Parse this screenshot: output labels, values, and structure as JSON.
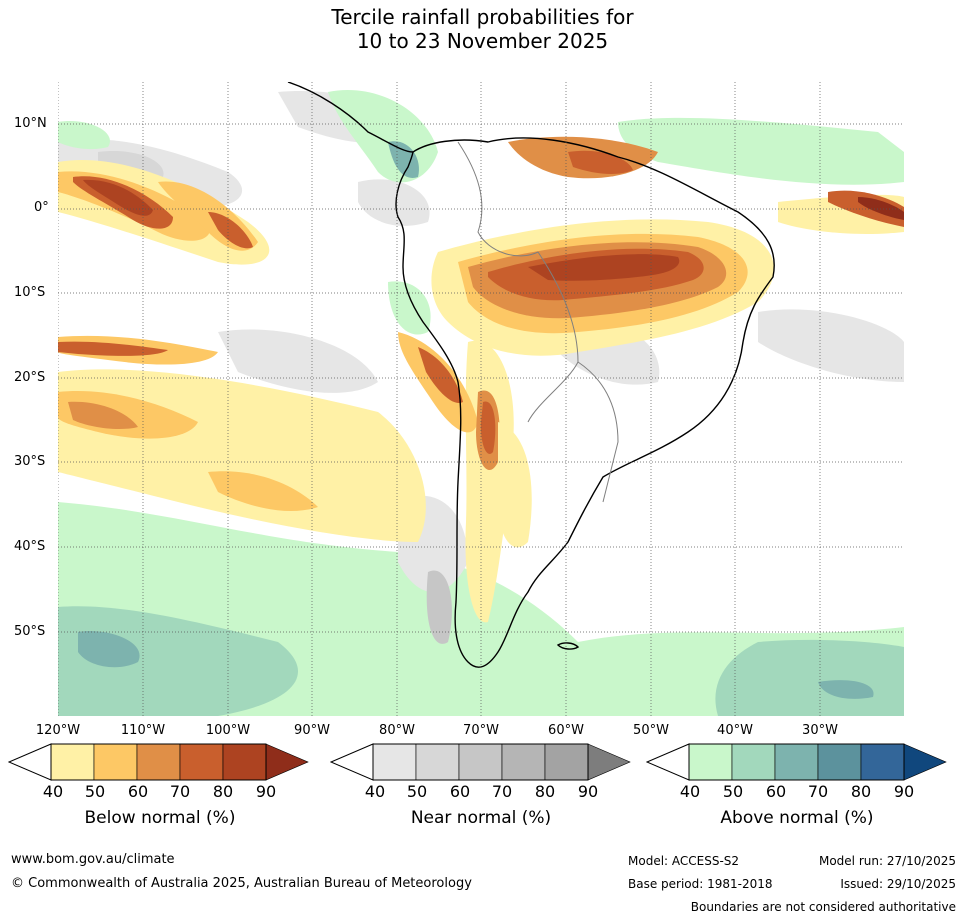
{
  "title_line1": "Tercile rainfall probabilities for",
  "title_line2": "10 to 23 November 2025",
  "lat_labels": [
    "10°N",
    "0°",
    "10°S",
    "20°S",
    "30°S",
    "40°S",
    "50°S"
  ],
  "lon_labels": [
    "120°W",
    "110°W",
    "100°W",
    "90°W",
    "80°W",
    "70°W",
    "60°W",
    "50°W",
    "40°W",
    "30°W"
  ],
  "colorbars": {
    "below": {
      "label": "Below normal (%)",
      "colors": [
        "#fff1a6",
        "#fdc865",
        "#e08f47",
        "#c95f2d",
        "#ad4321",
        "#8f2d1a"
      ]
    },
    "near": {
      "label": "Near normal (%)",
      "colors": [
        "#e6e6e6",
        "#d7d7d7",
        "#c6c6c6",
        "#b5b5b5",
        "#a3a3a3",
        "#7d7d7d"
      ]
    },
    "above": {
      "label": "Above normal (%)",
      "colors": [
        "#c9f7cb",
        "#a2d8bc",
        "#7db3ae",
        "#5c929d",
        "#336699",
        "#10477d"
      ]
    },
    "ticks": [
      "40",
      "50",
      "60",
      "70",
      "80",
      "90"
    ]
  },
  "footer": {
    "website": "www.bom.gov.au/climate",
    "copyright": "© Commonwealth of Australia 2025, Australian Bureau of Meteorology",
    "model": "Model: ACCESS-S2",
    "base_period": "Base period: 1981-2018",
    "model_run": "Model run: 27/10/2025",
    "issued": "Issued: 29/10/2025",
    "disclaimer": "Boundaries are not considered authoritative"
  }
}
